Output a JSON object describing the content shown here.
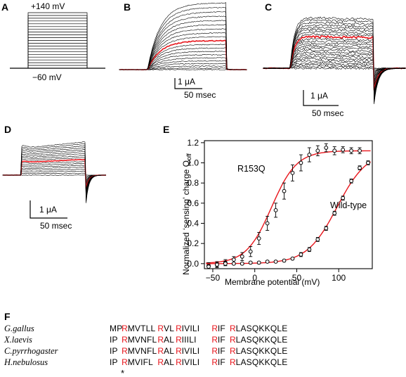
{
  "panels": {
    "A": {
      "letter": "A",
      "top_label": "+140 mV",
      "bottom_label": "−60 mV"
    },
    "B": {
      "letter": "B",
      "scale_current": "1 μA",
      "scale_time": "50 msec"
    },
    "C": {
      "letter": "C",
      "scale_current": "1 μA",
      "scale_time": "50 msec"
    },
    "D": {
      "letter": "D",
      "scale_current": "1 μA",
      "scale_time": "50 msec"
    },
    "E": {
      "letter": "E",
      "y_label_prefix": "Normalized ‘sensing’ charge ",
      "y_q": "Q",
      "y_q_sub": "off"
    },
    "F": {
      "letter": "F"
    }
  },
  "colors": {
    "highlight": "#e8151b",
    "trace": "#000000"
  },
  "chart_data": {
    "type": "scatter",
    "xlabel": "Membrane potential (mV)",
    "ylabel": "Normalized ‘sensing’ charge Q off",
    "xlim": [
      -60,
      140
    ],
    "ylim": [
      -0.05,
      1.22
    ],
    "xticks": [
      -50,
      0,
      50,
      100
    ],
    "yticks": [
      0.0,
      0.2,
      0.4,
      0.6,
      0.8,
      1.0,
      1.2
    ],
    "xtick_labels": [
      "−50",
      "0",
      "50",
      "100"
    ],
    "ytick_labels": [
      "0.0",
      "0.2",
      "0.4",
      "0.6",
      "0.8",
      "1.0",
      "1.2"
    ],
    "fit_color": "#e8151b",
    "series": [
      {
        "name": "R153Q",
        "x": [
          -55,
          -45,
          -35,
          -25,
          -15,
          -5,
          5,
          15,
          25,
          35,
          45,
          55,
          65,
          75,
          85,
          95,
          105,
          115,
          125,
          135
        ],
        "y": [
          -0.02,
          -0.01,
          0.01,
          0.04,
          0.07,
          0.12,
          0.25,
          0.4,
          0.53,
          0.72,
          0.9,
          1.0,
          1.08,
          1.12,
          1.15,
          1.12,
          1.13,
          1.12,
          1.12,
          1.0
        ],
        "err": [
          0.03,
          0.03,
          0.03,
          0.03,
          0.04,
          0.05,
          0.06,
          0.07,
          0.07,
          0.08,
          0.08,
          0.08,
          0.07,
          0.05,
          0.04,
          0.04,
          0.03,
          0.03,
          0.03,
          0.02
        ],
        "fit_v_half": 20,
        "fit_slope": 15,
        "fit_max": 1.12
      },
      {
        "name": "Wild-type",
        "x": [
          -55,
          -45,
          -35,
          -25,
          -15,
          -5,
          5,
          15,
          25,
          35,
          45,
          55,
          65,
          75,
          85,
          95,
          105,
          115,
          125,
          135
        ],
        "y": [
          -0.03,
          -0.01,
          0.0,
          0.0,
          0.0,
          0.01,
          0.01,
          0.02,
          0.02,
          0.03,
          0.05,
          0.09,
          0.14,
          0.24,
          0.35,
          0.5,
          0.65,
          0.82,
          0.95,
          1.0
        ],
        "err": [
          0.02,
          0.02,
          0.02,
          0.01,
          0.01,
          0.01,
          0.01,
          0.01,
          0.01,
          0.01,
          0.01,
          0.02,
          0.02,
          0.02,
          0.02,
          0.02,
          0.02,
          0.02,
          0.02,
          0.01
        ],
        "fit_v_half": 98,
        "fit_slope": 18,
        "fit_max": 1.12
      }
    ]
  },
  "alignment": {
    "rows": [
      {
        "species": "G.gallus",
        "segments": [
          [
            "MP",
            false
          ],
          [
            "R",
            true
          ],
          [
            "MVTLL",
            false
          ],
          [
            "R",
            true
          ],
          [
            "VL",
            false
          ],
          [
            "R",
            true
          ],
          [
            "IVILI",
            false
          ],
          [
            "R",
            true
          ],
          [
            "IF",
            false
          ],
          [
            "R",
            true
          ],
          [
            "LASQKKQLE",
            false
          ]
        ]
      },
      {
        "species": "X.laevis",
        "segments": [
          [
            "IP",
            false
          ],
          [
            "R",
            true
          ],
          [
            "MVNFL",
            false
          ],
          [
            "R",
            true
          ],
          [
            "AL",
            false
          ],
          [
            "R",
            true
          ],
          [
            "IIILI",
            false
          ],
          [
            "R",
            true
          ],
          [
            "IF",
            false
          ],
          [
            "R",
            true
          ],
          [
            "LASQKKQLE",
            false
          ]
        ]
      },
      {
        "species": "C.pyrrhogaster",
        "segments": [
          [
            "IP",
            false
          ],
          [
            "R",
            true
          ],
          [
            "MVNFL",
            false
          ],
          [
            "R",
            true
          ],
          [
            "AL",
            false
          ],
          [
            "R",
            true
          ],
          [
            "IVILI",
            false
          ],
          [
            "R",
            true
          ],
          [
            "IF",
            false
          ],
          [
            "R",
            true
          ],
          [
            "LASQKKQLE",
            false
          ]
        ]
      },
      {
        "species": "H.nebulosus",
        "segments": [
          [
            "IP",
            false
          ],
          [
            "R",
            true
          ],
          [
            "MVIFL",
            false
          ],
          [
            "R",
            true
          ],
          [
            "AL",
            false
          ],
          [
            "R",
            true
          ],
          [
            "IVILI",
            false
          ],
          [
            "R",
            true
          ],
          [
            "IF",
            false
          ],
          [
            "R",
            true
          ],
          [
            "LASQKKQLE",
            false
          ]
        ]
      }
    ],
    "marker": "*"
  }
}
